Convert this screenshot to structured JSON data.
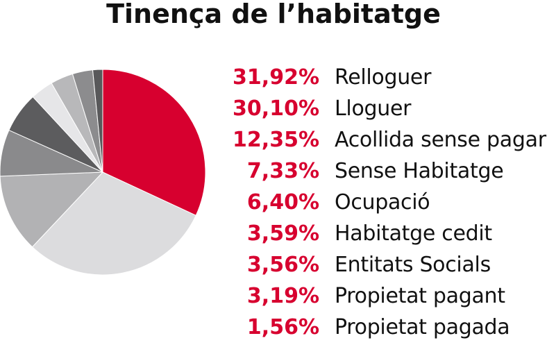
{
  "chart_data": {
    "type": "pie",
    "title": "Tinença de l’habitatge",
    "slices": [
      {
        "label": "Relloguer",
        "value": 31.92,
        "display": "31,92%",
        "color": "#d7002f"
      },
      {
        "label": "Lloguer",
        "value": 30.1,
        "display": "30,10%",
        "color": "#dcdcde"
      },
      {
        "label": "Acollida sense pagar",
        "value": 12.35,
        "display": "12,35%",
        "color": "#b2b2b4"
      },
      {
        "label": "Sense Habitatge",
        "value": 7.33,
        "display": "7,33%",
        "color": "#8a8a8c"
      },
      {
        "label": "Ocupació",
        "value": 6.4,
        "display": "6,40%",
        "color": "#5c5c5e"
      },
      {
        "label": "Habitatge cedit",
        "value": 3.59,
        "display": "3,59%",
        "color": "#e6e6e8"
      },
      {
        "label": "Entitats Socials",
        "value": 3.56,
        "display": "3,56%",
        "color": "#b8b8ba"
      },
      {
        "label": "Propietat pagant",
        "value": 3.19,
        "display": "3,19%",
        "color": "#8c8c8e"
      },
      {
        "label": "Propietat pagada",
        "value": 1.56,
        "display": "1,56%",
        "color": "#58585a"
      }
    ],
    "legend_position": "right"
  }
}
